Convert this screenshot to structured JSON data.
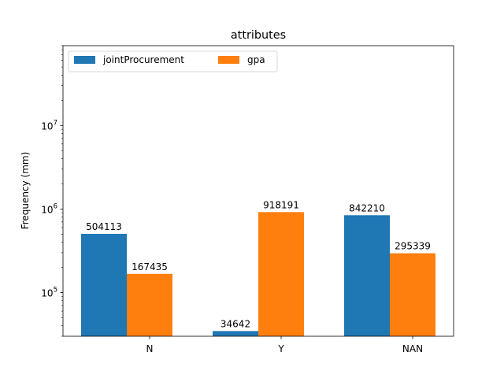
{
  "chart_data": {
    "type": "bar",
    "title": "attributes",
    "xlabel": "",
    "ylabel": "Frequency (mm)",
    "yscale": "log",
    "ylim": [
      30000,
      90000000
    ],
    "yticks": [
      {
        "value": 100000,
        "base": "10",
        "exp": "5"
      },
      {
        "value": 1000000,
        "base": "10",
        "exp": "6"
      },
      {
        "value": 10000000,
        "base": "10",
        "exp": "7"
      }
    ],
    "categories": [
      "N",
      "Y",
      "NAN"
    ],
    "series": [
      {
        "name": "jointProcurement",
        "color": "#1f77b4",
        "values": [
          504113,
          34642,
          842210
        ],
        "labels": [
          "504113",
          "34642",
          "842210"
        ]
      },
      {
        "name": "gpa",
        "color": "#ff7f0e",
        "values": [
          167435,
          918191,
          295339
        ],
        "labels": [
          "167435",
          "918191",
          "295339"
        ]
      }
    ],
    "legend_position": "top-left",
    "grid": false
  }
}
